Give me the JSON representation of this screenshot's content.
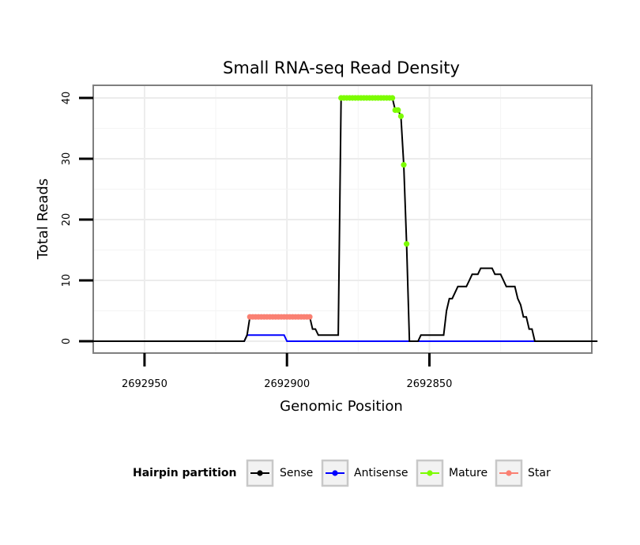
{
  "chart_data": {
    "type": "line",
    "title": "Small RNA-seq Read Density",
    "xlabel": "Genomic Position",
    "ylabel": "Total Reads",
    "x_reversed": true,
    "xlim": [
      2692968,
      2692793
    ],
    "ylim": [
      -2,
      42
    ],
    "xticks": [
      2692950,
      2692900,
      2692850
    ],
    "xtick_labels": [
      "2692950",
      "2692900",
      "2692850"
    ],
    "yticks": [
      0,
      10,
      20,
      30,
      40
    ],
    "ytick_labels": [
      "0",
      "10",
      "20",
      "30",
      "40"
    ],
    "grid": true,
    "legend": {
      "title": "Hairpin partition",
      "position": "bottom",
      "entries": [
        {
          "label": "Sense",
          "color": "#000000"
        },
        {
          "label": "Antisense",
          "color": "#0000ff"
        },
        {
          "label": "Mature",
          "color": "#7cfc00"
        },
        {
          "label": "Star",
          "color": "#fa8072"
        }
      ]
    },
    "series": [
      {
        "name": "Sense",
        "color": "#000000",
        "x": [
          2692968,
          2692915,
          2692914,
          2692913,
          2692912,
          2692911,
          2692910,
          2692909,
          2692908,
          2692907,
          2692906,
          2692905,
          2692904,
          2692903,
          2692902,
          2692901,
          2692900,
          2692899,
          2692898,
          2692897,
          2692896,
          2692895,
          2692894,
          2692893,
          2692892,
          2692891,
          2692890,
          2692889,
          2692888,
          2692887,
          2692886,
          2692885,
          2692884,
          2692883,
          2692882,
          2692881,
          2692880,
          2692879,
          2692878,
          2692877,
          2692876,
          2692875,
          2692874,
          2692873,
          2692872,
          2692871,
          2692870,
          2692869,
          2692868,
          2692867,
          2692866,
          2692865,
          2692864,
          2692863,
          2692862,
          2692861,
          2692860,
          2692859,
          2692858,
          2692857,
          2692856,
          2692855,
          2692854,
          2692853,
          2692852,
          2692851,
          2692850,
          2692849,
          2692848,
          2692847,
          2692846,
          2692845,
          2692844,
          2692843,
          2692842,
          2692841,
          2692840,
          2692839,
          2692838,
          2692837,
          2692836,
          2692835,
          2692834,
          2692833,
          2692832,
          2692831,
          2692830,
          2692829,
          2692828,
          2692827,
          2692826,
          2692825,
          2692824,
          2692823,
          2692822,
          2692821,
          2692820,
          2692819,
          2692818,
          2692817,
          2692816,
          2692815,
          2692814,
          2692813,
          2692812,
          2692811,
          2692810,
          2692809,
          2692808,
          2692807,
          2692806,
          2692805,
          2692804,
          2692803,
          2692802,
          2692801,
          2692800,
          2692799,
          2692798,
          2692797,
          2692796,
          2692795,
          2692794,
          2692793,
          2692791
        ],
        "y": [
          0,
          0,
          1,
          4,
          4,
          4,
          4,
          4,
          4,
          4,
          4,
          4,
          4,
          4,
          4,
          4,
          4,
          4,
          4,
          4,
          4,
          4,
          4,
          4,
          4,
          2,
          2,
          1,
          1,
          1,
          1,
          1,
          1,
          1,
          1,
          40,
          40,
          40,
          40,
          40,
          40,
          40,
          40,
          40,
          40,
          40,
          40,
          40,
          40,
          40,
          40,
          40,
          40,
          40,
          38,
          38,
          37,
          29,
          16,
          0,
          0,
          0,
          0,
          1,
          1,
          1,
          1,
          1,
          1,
          1,
          1,
          1,
          5,
          7,
          7,
          8,
          9,
          9,
          9,
          9,
          10,
          11,
          11,
          11,
          12,
          12,
          12,
          12,
          12,
          11,
          11,
          11,
          10,
          9,
          9,
          9,
          9,
          7,
          6,
          4,
          4,
          2,
          2,
          0,
          0,
          0,
          0,
          0,
          0,
          0,
          0,
          0,
          0,
          0,
          0,
          0,
          0,
          0,
          0,
          0,
          0,
          0,
          0,
          0,
          0
        ]
      },
      {
        "name": "Antisense",
        "color": "#0000ff",
        "x": [
          2692968,
          2692915,
          2692914,
          2692913,
          2692901,
          2692900,
          2692799
        ],
        "y": [
          0,
          0,
          1,
          1,
          1,
          0,
          0
        ]
      },
      {
        "name": "Mature",
        "color": "#7cfc00",
        "x": [
          2692881,
          2692880,
          2692879,
          2692878,
          2692877,
          2692876,
          2692875,
          2692874,
          2692873,
          2692872,
          2692871,
          2692870,
          2692869,
          2692868,
          2692867,
          2692866,
          2692865,
          2692864,
          2692863,
          2692862,
          2692861,
          2692860,
          2692859,
          2692858
        ],
        "y": [
          40,
          40,
          40,
          40,
          40,
          40,
          40,
          40,
          40,
          40,
          40,
          40,
          40,
          40,
          40,
          40,
          40,
          40,
          40,
          38,
          38,
          37,
          29,
          16
        ]
      },
      {
        "name": "Star",
        "color": "#fa8072",
        "x": [
          2692913,
          2692912,
          2692911,
          2692910,
          2692909,
          2692908,
          2692907,
          2692906,
          2692905,
          2692904,
          2692903,
          2692902,
          2692901,
          2692900,
          2692899,
          2692898,
          2692897,
          2692896,
          2692895,
          2692894,
          2692893,
          2692892
        ],
        "y": [
          4,
          4,
          4,
          4,
          4,
          4,
          4,
          4,
          4,
          4,
          4,
          4,
          4,
          4,
          4,
          4,
          4,
          4,
          4,
          4,
          4,
          4
        ]
      }
    ]
  }
}
